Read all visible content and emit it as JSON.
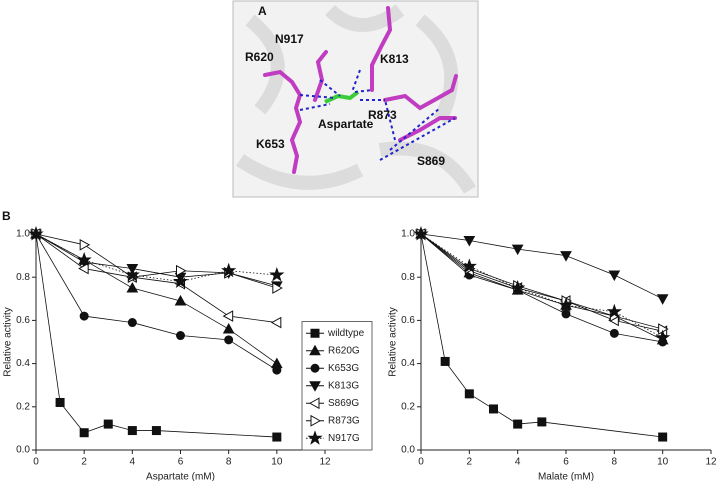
{
  "panel_a": {
    "label": "A",
    "residue_labels": [
      "N917",
      "R620",
      "K813",
      "R873",
      "Aspartate",
      "K653",
      "S869"
    ]
  },
  "panel_b_label": "B",
  "chart_data": [
    {
      "type": "line",
      "xlabel": "Aspartate (mM)",
      "ylabel": "Relative activity",
      "xlim": [
        0,
        12
      ],
      "xticks": [
        0,
        2,
        4,
        6,
        8,
        10,
        12
      ],
      "ylim": [
        0,
        1
      ],
      "yticks": [
        {
          "value": 0,
          "label": "0.0"
        },
        {
          "value": 0.2,
          "label": "0.2"
        },
        {
          "value": 0.4,
          "label": "0.4"
        },
        {
          "value": 0.6,
          "label": "0.6"
        },
        {
          "value": 0.8,
          "label": "0.8"
        },
        {
          "value": 1,
          "label": "1.0"
        }
      ],
      "legend": "lower right",
      "series": [
        {
          "name": "wildtype",
          "color": "#111111",
          "marker": "square",
          "fill": "filled",
          "linestyle": "solid",
          "x": [
            0,
            1,
            2,
            3,
            4,
            5,
            10
          ],
          "values": [
            1.0,
            0.22,
            0.08,
            0.12,
            0.09,
            0.09,
            0.06
          ]
        },
        {
          "name": "R620G",
          "color": "#111111",
          "marker": "triangle-up",
          "fill": "filled",
          "linestyle": "solid",
          "x": [
            0,
            2,
            4,
            6,
            8,
            10
          ],
          "values": [
            1.0,
            0.88,
            0.75,
            0.69,
            0.56,
            0.4
          ]
        },
        {
          "name": "K653G",
          "color": "#111111",
          "marker": "circle",
          "fill": "filled",
          "linestyle": "solid",
          "x": [
            0,
            2,
            4,
            6,
            8,
            10
          ],
          "values": [
            1.0,
            0.62,
            0.59,
            0.53,
            0.51,
            0.37
          ]
        },
        {
          "name": "K813G",
          "color": "#111111",
          "marker": "triangle-down",
          "fill": "filled",
          "linestyle": "solid",
          "x": [
            0,
            2,
            4,
            6,
            8,
            10
          ],
          "values": [
            1.0,
            0.87,
            0.84,
            0.8,
            0.82,
            0.76
          ]
        },
        {
          "name": "S869G",
          "color": "#111111",
          "marker": "triangle-left",
          "fill": "open",
          "linestyle": "solid",
          "x": [
            0,
            2,
            4,
            6,
            8,
            10
          ],
          "values": [
            1.0,
            0.84,
            0.8,
            0.77,
            0.62,
            0.59
          ]
        },
        {
          "name": "R873G",
          "color": "#111111",
          "marker": "triangle-right",
          "fill": "open",
          "linestyle": "solid",
          "x": [
            0,
            2,
            4,
            6,
            8,
            10
          ],
          "values": [
            1.0,
            0.95,
            0.8,
            0.83,
            0.82,
            0.75
          ]
        },
        {
          "name": "N917G",
          "color": "#111111",
          "marker": "star",
          "fill": "filled",
          "linestyle": "dotted",
          "x": [
            0,
            2,
            4,
            6,
            8,
            10
          ],
          "values": [
            1.0,
            0.88,
            0.81,
            0.78,
            0.83,
            0.81
          ]
        }
      ]
    },
    {
      "type": "line",
      "xlabel": "Malate (mM)",
      "ylabel": "Relative activity",
      "xlim": [
        0,
        12
      ],
      "xticks": [
        0,
        2,
        4,
        6,
        8,
        10,
        12
      ],
      "ylim": [
        0,
        1
      ],
      "yticks": [
        {
          "value": 0,
          "label": "0.0"
        },
        {
          "value": 0.2,
          "label": "0.2"
        },
        {
          "value": 0.4,
          "label": "0.4"
        },
        {
          "value": 0.6,
          "label": "0.6"
        },
        {
          "value": 0.8,
          "label": "0.8"
        },
        {
          "value": 1,
          "label": "1.0"
        }
      ],
      "series": [
        {
          "name": "wildtype",
          "color": "#111111",
          "marker": "square",
          "fill": "filled",
          "linestyle": "solid",
          "x": [
            0,
            1,
            2,
            3,
            4,
            5,
            10
          ],
          "values": [
            1.0,
            0.41,
            0.26,
            0.19,
            0.12,
            0.13,
            0.06
          ]
        },
        {
          "name": "R620G",
          "color": "#111111",
          "marker": "triangle-up",
          "fill": "filled",
          "linestyle": "solid",
          "x": [
            0,
            2,
            4,
            6,
            8,
            10
          ],
          "values": [
            1.0,
            0.82,
            0.74,
            0.67,
            0.62,
            0.51
          ]
        },
        {
          "name": "K653G",
          "color": "#111111",
          "marker": "circle",
          "fill": "filled",
          "linestyle": "solid",
          "x": [
            0,
            2,
            4,
            6,
            8,
            10
          ],
          "values": [
            1.0,
            0.81,
            0.74,
            0.63,
            0.54,
            0.5
          ]
        },
        {
          "name": "K813G",
          "color": "#111111",
          "marker": "triangle-down",
          "fill": "filled",
          "linestyle": "solid",
          "x": [
            0,
            2,
            4,
            6,
            8,
            10
          ],
          "values": [
            1.0,
            0.97,
            0.93,
            0.9,
            0.81,
            0.7
          ]
        },
        {
          "name": "S869G",
          "color": "#111111",
          "marker": "triangle-left",
          "fill": "open",
          "linestyle": "solid",
          "x": [
            0,
            2,
            4,
            6,
            8,
            10
          ],
          "values": [
            1.0,
            0.83,
            0.75,
            0.69,
            0.6,
            0.55
          ]
        },
        {
          "name": "R873G",
          "color": "#111111",
          "marker": "triangle-right",
          "fill": "open",
          "linestyle": "solid",
          "x": [
            0,
            2,
            4,
            6,
            8,
            10
          ],
          "values": [
            1.0,
            0.84,
            0.76,
            0.69,
            0.62,
            0.56
          ]
        },
        {
          "name": "N917G",
          "color": "#111111",
          "marker": "star",
          "fill": "filled",
          "linestyle": "dotted",
          "x": [
            0,
            2,
            4,
            6,
            8,
            10
          ],
          "values": [
            1.0,
            0.85,
            0.75,
            0.67,
            0.64,
            0.52
          ]
        }
      ]
    }
  ]
}
